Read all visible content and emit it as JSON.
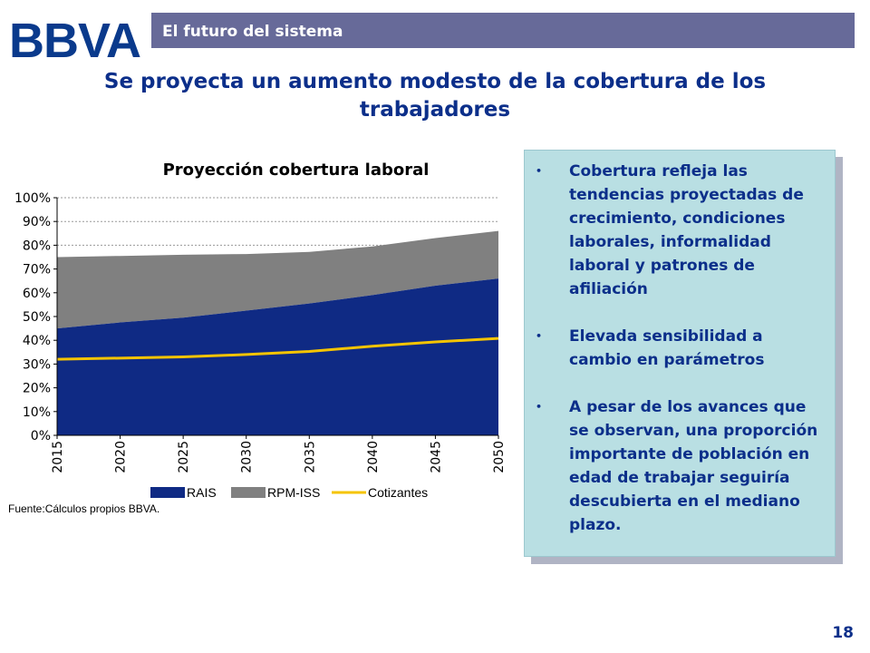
{
  "brand": {
    "logo_text": "BBVA"
  },
  "header": {
    "section_title": "El futuro del sistema"
  },
  "slide": {
    "title": "Se proyecta un aumento modesto de la cobertura de los trabajadores",
    "page_number": "18",
    "source": "Fuente:Cálculos propios BBVA."
  },
  "bullets": [
    {
      "text": "Cobertura refleja las tendencias proyectadas de crecimiento, condiciones laborales, informalidad laboral y patrones de afiliación"
    },
    {
      "text": "Elevada sensibilidad a cambio en parámetros"
    },
    {
      "text": "A pesar de los avances que se observan, una proporción importante de población en edad de trabajar seguiría descubierta en el mediano plazo."
    }
  ],
  "colors": {
    "title": "#0c2f8a",
    "section_bar": "#676a99",
    "note_box": "#b9dfe3",
    "rais": "#0f2a84",
    "rpm_iss": "#808080",
    "cotizantes": "#f5c400"
  },
  "chart_data": {
    "type": "area",
    "title": "Proyección cobertura laboral",
    "x": [
      2015,
      2020,
      2025,
      2030,
      2035,
      2040,
      2045,
      2050
    ],
    "x_tick_labels": [
      "2015",
      "2020",
      "2025",
      "2030",
      "2035",
      "2040",
      "2045",
      "2050"
    ],
    "y_tick_labels": [
      "0%",
      "10%",
      "20%",
      "30%",
      "40%",
      "50%",
      "60%",
      "70%",
      "80%",
      "90%",
      "100%"
    ],
    "ylim": [
      0,
      100
    ],
    "grid": true,
    "legend_position": "bottom",
    "series": [
      {
        "name": "RAIS",
        "kind": "area",
        "values": [
          45,
          47.5,
          49.5,
          52.5,
          55.5,
          59,
          63,
          66
        ]
      },
      {
        "name": "RPM-ISS",
        "kind": "area",
        "stacked_top": [
          75,
          75.5,
          76,
          76.3,
          77.2,
          79.5,
          83,
          86
        ]
      },
      {
        "name": "Cotizantes",
        "kind": "line",
        "values": [
          32,
          32.5,
          33,
          34,
          35.3,
          37.5,
          39.3,
          40.8
        ]
      }
    ]
  }
}
